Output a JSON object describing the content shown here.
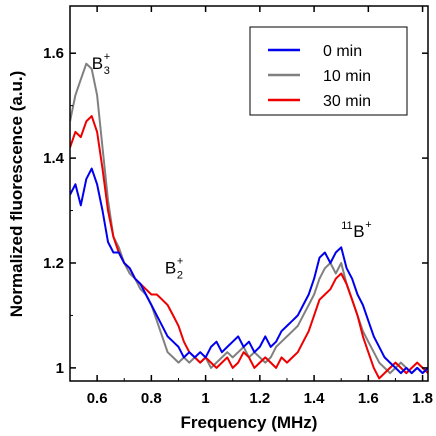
{
  "chart_data": {
    "type": "line",
    "xlabel": "Frequency (MHz)",
    "ylabel": "Normalized fluorescence (a.u.)",
    "xlim": [
      0.5,
      1.82
    ],
    "ylim": [
      0.975,
      1.69
    ],
    "xticks": [
      0.6,
      0.8,
      1,
      1.2,
      1.4,
      1.6,
      1.8
    ],
    "xtick_labels": [
      "0.6",
      "0.8",
      "1",
      "1.2",
      "1.4",
      "1.6",
      "1.8"
    ],
    "yticks": [
      1,
      1.2,
      1.4,
      1.6
    ],
    "ytick_labels": [
      "1",
      "1.2",
      "1.4",
      "1.6"
    ],
    "grid": false,
    "legend_position": "top-right",
    "annotations": [
      {
        "base": "B",
        "sub": "3",
        "sup": "+",
        "x": 0.58,
        "y": 1.57
      },
      {
        "base": "B",
        "sub": "2",
        "sup": "+",
        "x": 0.85,
        "y": 1.18
      },
      {
        "base": "B",
        "pre": "11",
        "sup": "+",
        "x": 1.5,
        "y": 1.25
      }
    ],
    "series": [
      {
        "name": "0 min",
        "color": "#0000ee",
        "x": [
          0.5,
          0.52,
          0.54,
          0.56,
          0.58,
          0.6,
          0.62,
          0.64,
          0.66,
          0.68,
          0.7,
          0.72,
          0.74,
          0.76,
          0.78,
          0.8,
          0.82,
          0.84,
          0.86,
          0.88,
          0.9,
          0.92,
          0.94,
          0.96,
          0.98,
          1.0,
          1.02,
          1.04,
          1.06,
          1.08,
          1.1,
          1.12,
          1.14,
          1.16,
          1.18,
          1.2,
          1.22,
          1.24,
          1.26,
          1.28,
          1.3,
          1.32,
          1.34,
          1.36,
          1.38,
          1.4,
          1.42,
          1.44,
          1.46,
          1.48,
          1.5,
          1.52,
          1.54,
          1.56,
          1.58,
          1.6,
          1.62,
          1.64,
          1.66,
          1.68,
          1.7,
          1.72,
          1.74,
          1.76,
          1.78,
          1.8,
          1.82
        ],
        "y": [
          1.33,
          1.35,
          1.31,
          1.36,
          1.38,
          1.35,
          1.3,
          1.24,
          1.22,
          1.22,
          1.2,
          1.19,
          1.17,
          1.16,
          1.14,
          1.12,
          1.1,
          1.08,
          1.06,
          1.05,
          1.04,
          1.02,
          1.03,
          1.02,
          1.03,
          1.02,
          1.04,
          1.05,
          1.03,
          1.04,
          1.05,
          1.06,
          1.04,
          1.05,
          1.03,
          1.04,
          1.06,
          1.04,
          1.05,
          1.07,
          1.08,
          1.09,
          1.1,
          1.12,
          1.14,
          1.17,
          1.21,
          1.22,
          1.2,
          1.22,
          1.23,
          1.19,
          1.17,
          1.14,
          1.12,
          1.09,
          1.06,
          1.04,
          1.02,
          1.01,
          1.0,
          0.99,
          1.0,
          0.99,
          1.0,
          0.99,
          1.0
        ]
      },
      {
        "name": "10 min",
        "color": "#808080",
        "x": [
          0.5,
          0.52,
          0.54,
          0.56,
          0.58,
          0.6,
          0.62,
          0.64,
          0.66,
          0.68,
          0.7,
          0.72,
          0.74,
          0.76,
          0.78,
          0.8,
          0.82,
          0.84,
          0.86,
          0.88,
          0.9,
          0.92,
          0.94,
          0.96,
          0.98,
          1.0,
          1.02,
          1.04,
          1.06,
          1.08,
          1.1,
          1.12,
          1.14,
          1.16,
          1.18,
          1.2,
          1.22,
          1.24,
          1.26,
          1.28,
          1.3,
          1.32,
          1.34,
          1.36,
          1.38,
          1.4,
          1.42,
          1.44,
          1.46,
          1.48,
          1.5,
          1.52,
          1.54,
          1.56,
          1.58,
          1.6,
          1.62,
          1.64,
          1.66,
          1.68,
          1.7,
          1.72,
          1.74,
          1.76,
          1.78,
          1.8,
          1.82
        ],
        "y": [
          1.47,
          1.52,
          1.55,
          1.58,
          1.57,
          1.52,
          1.42,
          1.32,
          1.25,
          1.23,
          1.2,
          1.18,
          1.17,
          1.15,
          1.14,
          1.12,
          1.09,
          1.06,
          1.03,
          1.02,
          1.01,
          1.02,
          1.01,
          1.02,
          1.01,
          1.02,
          1.0,
          1.01,
          1.02,
          1.03,
          1.02,
          1.03,
          1.04,
          1.02,
          1.03,
          1.02,
          1.01,
          1.02,
          1.04,
          1.05,
          1.06,
          1.07,
          1.08,
          1.1,
          1.12,
          1.14,
          1.17,
          1.19,
          1.2,
          1.18,
          1.2,
          1.16,
          1.13,
          1.1,
          1.07,
          1.05,
          1.03,
          1.01,
          1.0,
          0.99,
          1.0,
          1.01,
          1.0,
          0.99,
          1.0,
          0.99,
          1.0
        ]
      },
      {
        "name": "30 min",
        "color": "#ee0000",
        "x": [
          0.5,
          0.52,
          0.54,
          0.56,
          0.58,
          0.6,
          0.62,
          0.64,
          0.66,
          0.68,
          0.7,
          0.72,
          0.74,
          0.76,
          0.78,
          0.8,
          0.82,
          0.84,
          0.86,
          0.88,
          0.9,
          0.92,
          0.94,
          0.96,
          0.98,
          1.0,
          1.02,
          1.04,
          1.06,
          1.08,
          1.1,
          1.12,
          1.14,
          1.16,
          1.18,
          1.2,
          1.22,
          1.24,
          1.26,
          1.28,
          1.3,
          1.32,
          1.34,
          1.36,
          1.38,
          1.4,
          1.42,
          1.44,
          1.46,
          1.48,
          1.5,
          1.52,
          1.54,
          1.56,
          1.58,
          1.6,
          1.62,
          1.64,
          1.66,
          1.68,
          1.7,
          1.72,
          1.74,
          1.76,
          1.78,
          1.8,
          1.82
        ],
        "y": [
          1.42,
          1.45,
          1.44,
          1.47,
          1.48,
          1.45,
          1.38,
          1.3,
          1.25,
          1.22,
          1.2,
          1.19,
          1.17,
          1.16,
          1.15,
          1.14,
          1.14,
          1.13,
          1.12,
          1.1,
          1.08,
          1.05,
          1.03,
          1.02,
          1.01,
          1.02,
          1.01,
          1.0,
          1.01,
          1.02,
          1.0,
          1.01,
          1.03,
          1.02,
          1.0,
          1.01,
          1.02,
          1.01,
          1.0,
          1.02,
          1.01,
          1.02,
          1.03,
          1.05,
          1.07,
          1.1,
          1.13,
          1.14,
          1.15,
          1.17,
          1.18,
          1.16,
          1.13,
          1.1,
          1.06,
          1.03,
          1.0,
          0.98,
          0.99,
          1.0,
          1.01,
          1.0,
          0.99,
          1.0,
          1.01,
          1.0,
          0.99
        ]
      }
    ]
  }
}
